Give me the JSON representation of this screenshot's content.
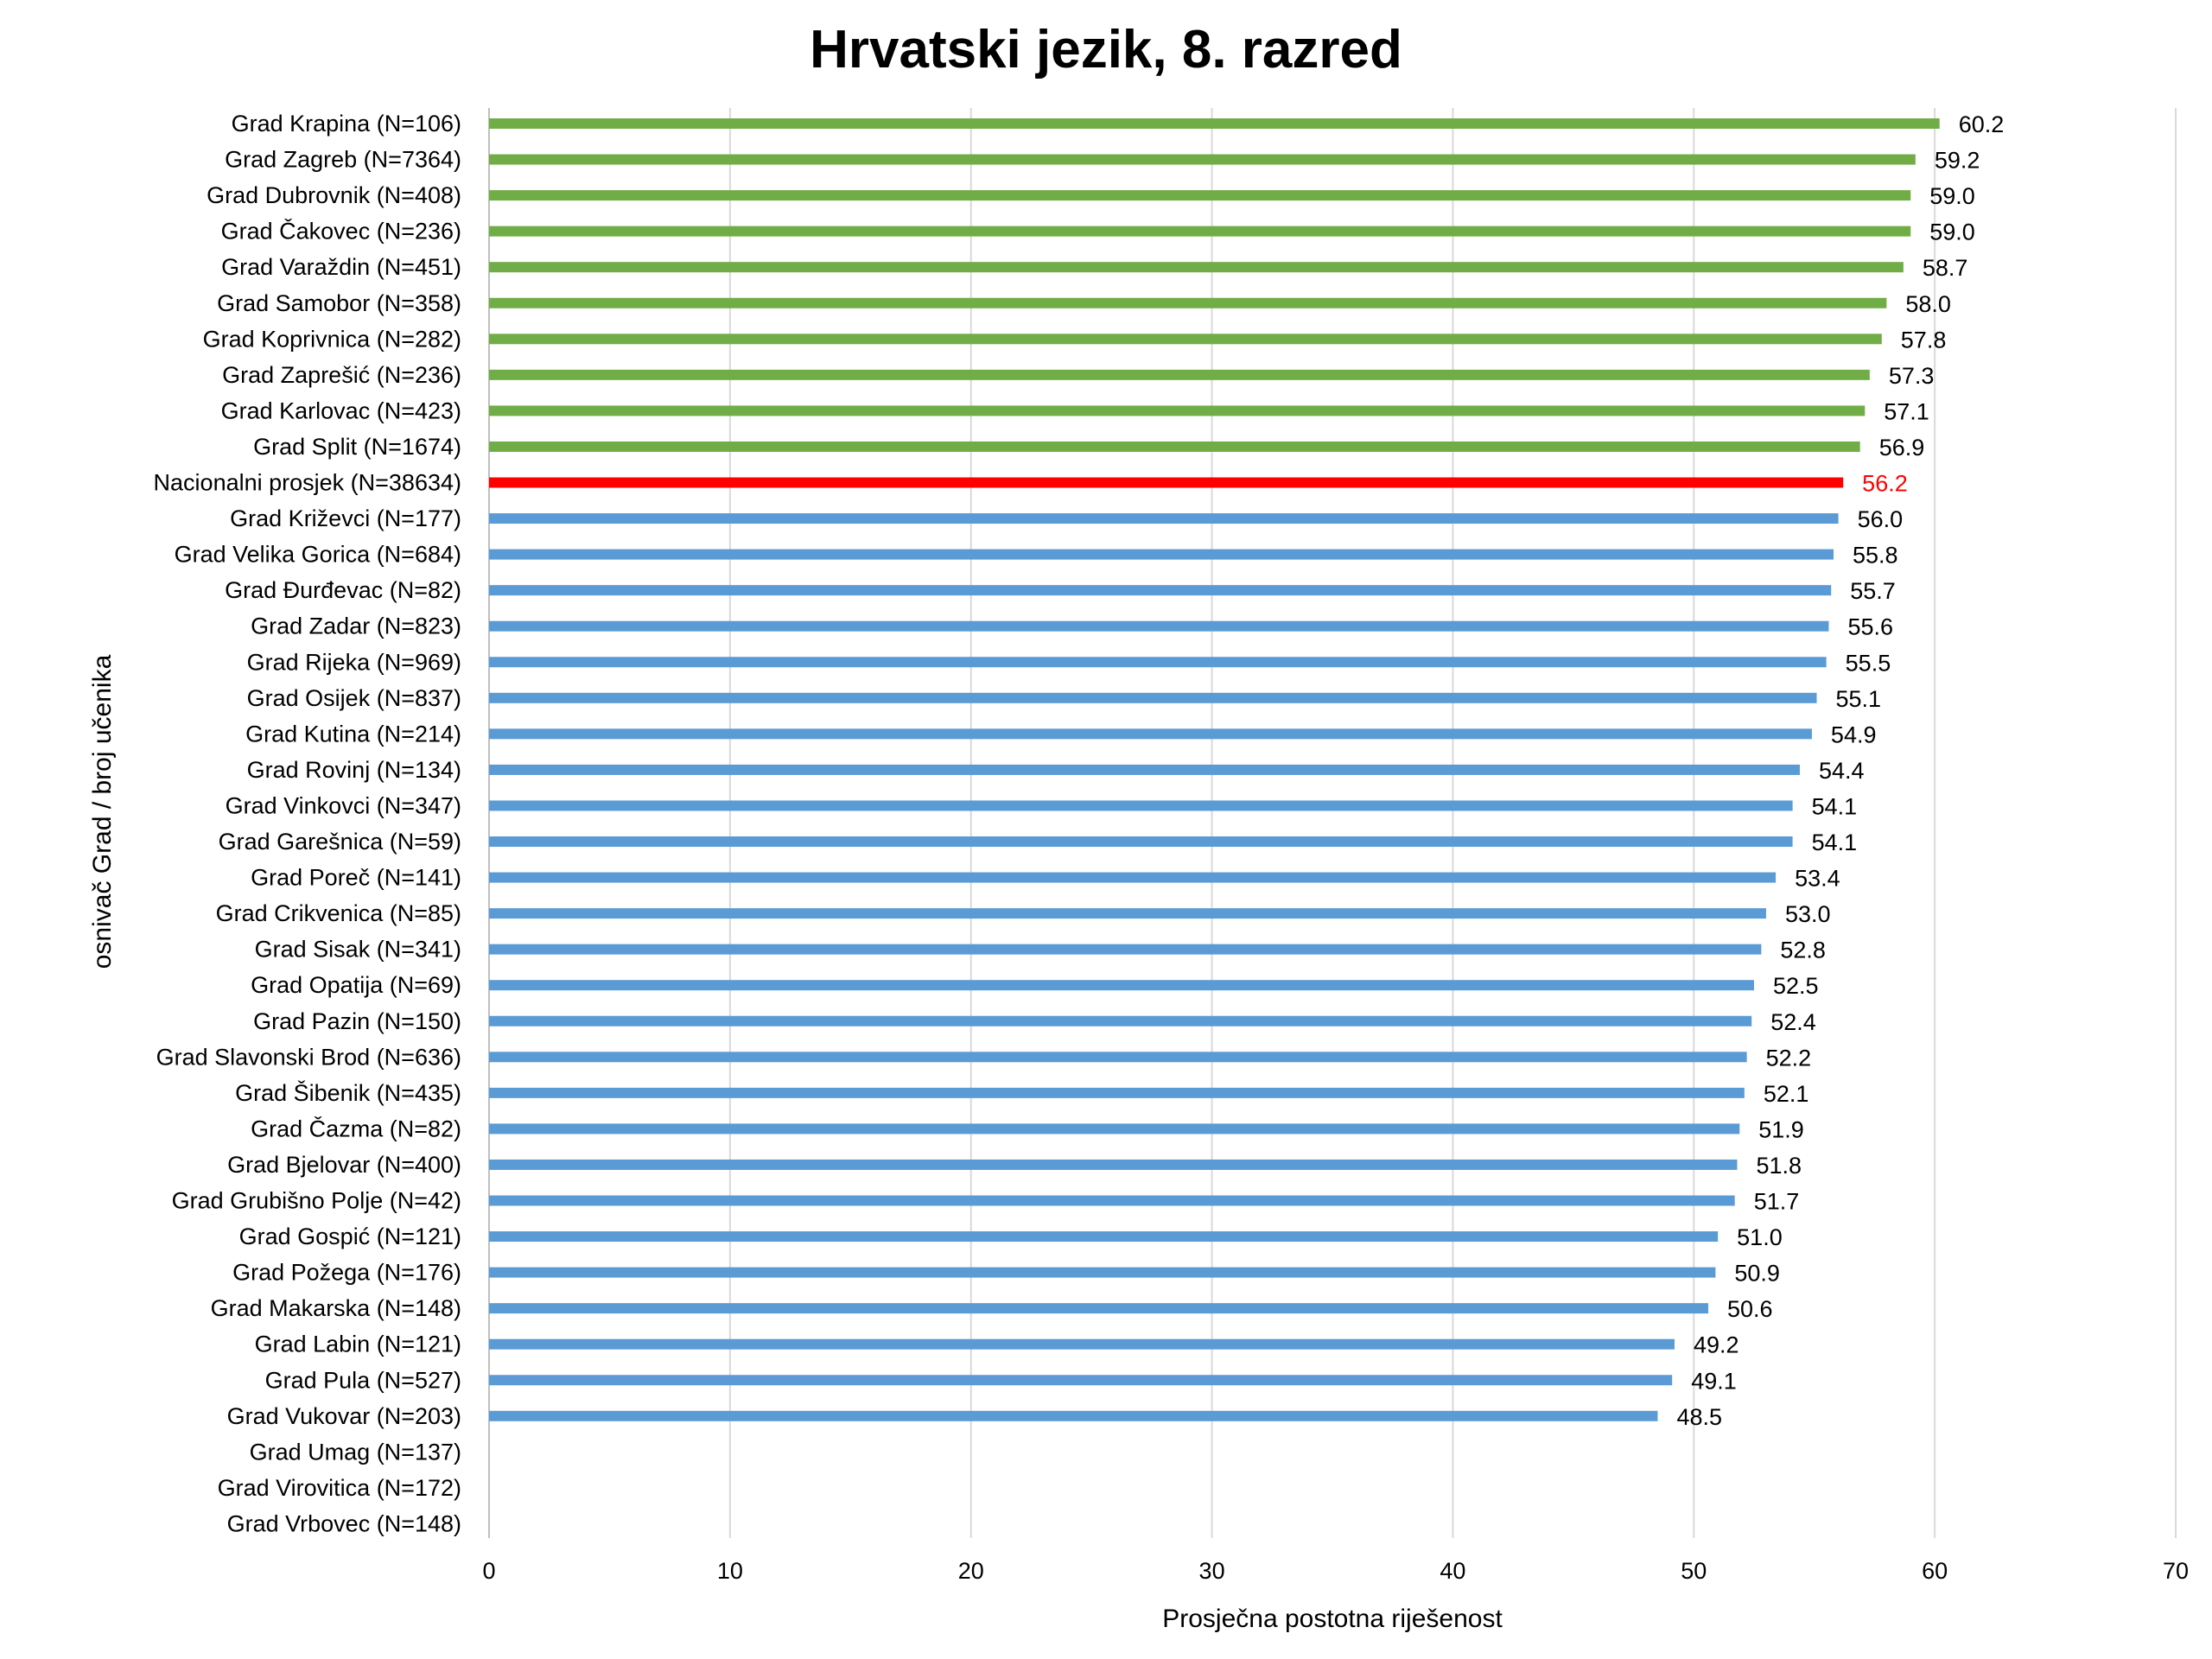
{
  "chart_data": {
    "type": "bar",
    "orientation": "horizontal",
    "title": "Hrvatski jezik, 8. razred",
    "xlabel": "Prosječna postotna riješenost",
    "ylabel": "osnivač Grad / broj učenika",
    "xlim": [
      0,
      70
    ],
    "xticks": [
      "0",
      "10",
      "20",
      "30",
      "40",
      "50",
      "60",
      "70"
    ],
    "grid": "vertical",
    "legend": "none",
    "colors": {
      "above": "#70AD47",
      "national": "#FF0000",
      "below": "#5B9BD5",
      "national_label": "#FF0000",
      "label": "#000000"
    },
    "categories": [
      "Grad Krapina (N=106)",
      "Grad Zagreb (N=7364)",
      "Grad Dubrovnik (N=408)",
      "Grad Čakovec (N=236)",
      "Grad Varaždin (N=451)",
      "Grad Samobor (N=358)",
      "Grad Koprivnica (N=282)",
      "Grad Zaprešić (N=236)",
      "Grad Karlovac (N=423)",
      "Grad Split (N=1674)",
      "Nacionalni prosjek (N=38634)",
      "Grad Križevci (N=177)",
      "Grad Velika Gorica (N=684)",
      "Grad Đurđevac (N=82)",
      "Grad Zadar (N=823)",
      "Grad Rijeka (N=969)",
      "Grad Osijek (N=837)",
      "Grad Kutina (N=214)",
      "Grad Rovinj (N=134)",
      "Grad Vinkovci (N=347)",
      "Grad Garešnica (N=59)",
      "Grad Poreč (N=141)",
      "Grad Crikvenica (N=85)",
      "Grad Sisak (N=341)",
      "Grad Opatija (N=69)",
      "Grad Pazin (N=150)",
      "Grad Slavonski Brod (N=636)",
      "Grad Šibenik (N=435)",
      "Grad Čazma (N=82)",
      "Grad Bjelovar (N=400)",
      "Grad Grubišno Polje (N=42)",
      "Grad Gospić (N=121)",
      "Grad Požega (N=176)",
      "Grad Makarska (N=148)",
      "Grad Labin (N=121)",
      "Grad Pula (N=527)",
      "Grad Vukovar (N=203)",
      "Grad Umag (N=137)",
      "Grad Virovitica (N=172)",
      "Grad Vrbovec (N=148)"
    ],
    "values": [
      60.2,
      59.2,
      59.0,
      59.0,
      58.7,
      58.0,
      57.8,
      57.3,
      57.1,
      56.9,
      56.2,
      56.0,
      55.8,
      55.7,
      55.6,
      55.5,
      55.1,
      54.9,
      54.4,
      54.1,
      54.1,
      53.4,
      53.0,
      52.8,
      52.5,
      52.4,
      52.2,
      52.1,
      51.9,
      51.8,
      51.7,
      51.0,
      50.9,
      50.6,
      49.2,
      49.1,
      48.5,
      null,
      null,
      null
    ],
    "value_labels": [
      "60.2",
      "59.2",
      "59.0",
      "59.0",
      "58.7",
      "58.0",
      "57.8",
      "57.3",
      "57.1",
      "56.9",
      "56.2",
      "56.0",
      "55.8",
      "55.7",
      "55.6",
      "55.5",
      "55.1",
      "54.9",
      "54.4",
      "54.1",
      "54.1",
      "53.4",
      "53.0",
      "52.8",
      "52.5",
      "52.4",
      "52.2",
      "52.1",
      "51.9",
      "51.8",
      "51.7",
      "51.0",
      "50.9",
      "50.6",
      "49.2",
      "49.1",
      "48.5",
      "",
      "",
      ""
    ],
    "bar_groups": [
      "above",
      "above",
      "above",
      "above",
      "above",
      "above",
      "above",
      "above",
      "above",
      "above",
      "national",
      "below",
      "below",
      "below",
      "below",
      "below",
      "below",
      "below",
      "below",
      "below",
      "below",
      "below",
      "below",
      "below",
      "below",
      "below",
      "below",
      "below",
      "below",
      "below",
      "below",
      "below",
      "below",
      "below",
      "below",
      "below",
      "below",
      "none",
      "none",
      "none"
    ]
  }
}
